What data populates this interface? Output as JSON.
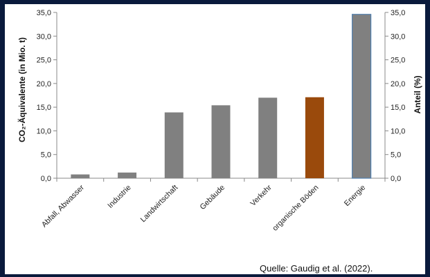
{
  "chart_data": {
    "type": "bar",
    "categories": [
      "Abfall, Abwasser",
      "Industrie",
      "Landwirtschaft",
      "Gebäude",
      "Verkehr",
      "organische Böden",
      "Energie"
    ],
    "values": [
      0.8,
      1.2,
      13.9,
      15.4,
      17.0,
      17.1,
      34.6
    ],
    "colors": [
      "#808080",
      "#808080",
      "#808080",
      "#808080",
      "#808080",
      "#9a4a0c",
      "#808080"
    ],
    "highlight_category": "organische Böden",
    "ylabel_left": "CO₂-Äquivalente (in Mio. t)",
    "ylabel_right": "Anteil (%)",
    "yticks": [
      "0,0",
      "5,0",
      "10,0",
      "15,0",
      "20,0",
      "25,0",
      "30,0",
      "35,0"
    ],
    "ylim": [
      0,
      35
    ],
    "grid": false
  },
  "source": "Quelle: Gaudig et al. (2022)."
}
